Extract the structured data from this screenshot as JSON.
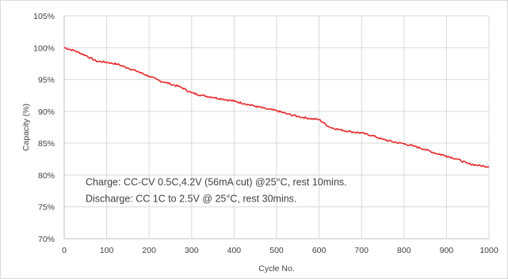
{
  "chart_data": {
    "type": "line",
    "xlabel": "Cycle No.",
    "ylabel": "Capacity (%)",
    "xlim": [
      0,
      1000
    ],
    "ylim": [
      70,
      105
    ],
    "x_ticks": [
      "0",
      "100",
      "200",
      "300",
      "400",
      "500",
      "600",
      "700",
      "800",
      "900",
      "1000"
    ],
    "y_ticks": [
      "70%",
      "75%",
      "80%",
      "85%",
      "90%",
      "95%",
      "100%",
      "105%"
    ],
    "grid": true,
    "legend": "none",
    "annotations": [
      "Charge: CC-CV 0.5C,4.2V (56mA cut) @25°C, rest 10mins.",
      "Discharge: CC 1C to 2.5V @ 25°C, rest 30mins."
    ],
    "series": [
      {
        "color": "#e8262a",
        "x": [
          0,
          25,
          50,
          75,
          100,
          125,
          150,
          175,
          200,
          225,
          250,
          275,
          300,
          325,
          350,
          375,
          400,
          425,
          450,
          475,
          500,
          525,
          550,
          575,
          600,
          625,
          650,
          675,
          700,
          725,
          750,
          775,
          800,
          825,
          850,
          875,
          900,
          925,
          950,
          975,
          1000
        ],
        "y": [
          100.0,
          99.5,
          98.8,
          97.9,
          97.7,
          97.4,
          96.8,
          96.2,
          95.5,
          94.8,
          94.3,
          93.8,
          92.9,
          92.5,
          92.2,
          91.9,
          91.6,
          91.2,
          90.8,
          90.4,
          90.1,
          89.6,
          89.2,
          88.9,
          88.7,
          87.5,
          87.1,
          86.8,
          86.6,
          86.2,
          85.6,
          85.2,
          84.9,
          84.5,
          84.0,
          83.4,
          83.0,
          82.5,
          81.8,
          81.5,
          81.3
        ]
      }
    ]
  }
}
